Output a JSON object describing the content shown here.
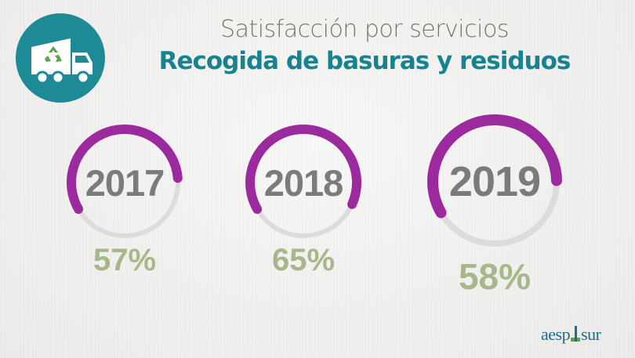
{
  "header": {
    "subtitle": "Satisfacción por servicios",
    "title": "Recogida de basuras y residuos"
  },
  "icon": {
    "name": "garbage-truck-recycle-icon",
    "badge_color": "#1e8a96"
  },
  "colors": {
    "arc": "#9b2a9e",
    "track": "#dcdcdc",
    "year_text": "#7b7b7b",
    "pct_text": "#a6b88a"
  },
  "chart_data": {
    "type": "pie",
    "categories": [
      "2017",
      "2018",
      "2019"
    ],
    "values": [
      57,
      65,
      58
    ],
    "labels": [
      "57%",
      "65%",
      "58%"
    ],
    "title": "Recogida de basuras y residuos"
  },
  "logo": {
    "text_left": "aesp",
    "text_right": "sur"
  }
}
